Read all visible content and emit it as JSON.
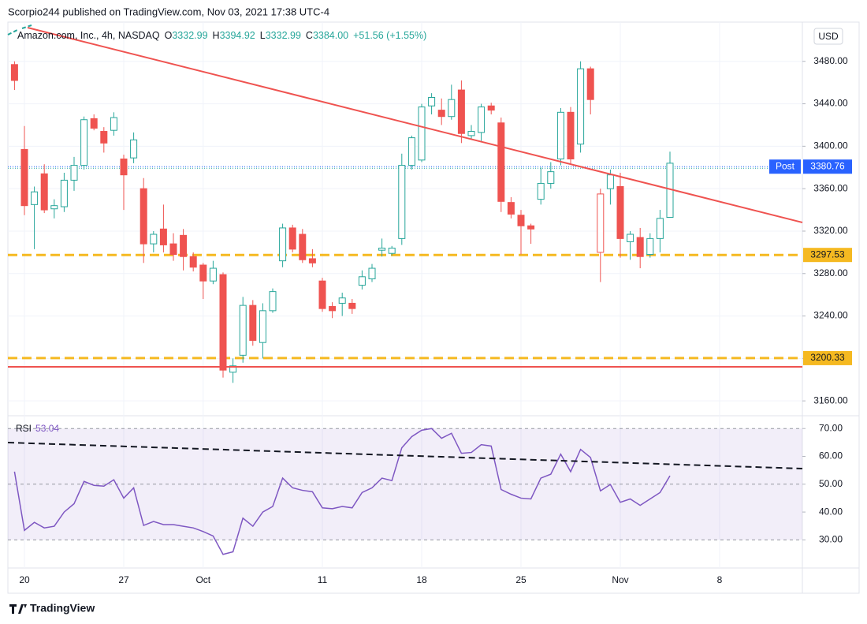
{
  "header": "Scorpio244 published on TradingView.com, Nov 03, 2021 17:38 UTC-4",
  "footer": "TradingView",
  "chart_data": {
    "type": "candlestick",
    "currency": "USD",
    "symbol": "Amazon.com, Inc., 4h, NASDAQ",
    "legend": [
      {
        "key": "O",
        "text": "3332.99"
      },
      {
        "key": "H",
        "text": "3394.92"
      },
      {
        "key": "L",
        "text": "3332.99"
      },
      {
        "key": "C",
        "text": "3384.00"
      }
    ],
    "change": "+51.56 (+1.55%)",
    "up_color": "#26a69a",
    "down_color": "#ef5350",
    "categories": [
      null,
      "20",
      null,
      null,
      null,
      null,
      null,
      null,
      null,
      null,
      null,
      "27",
      null,
      null,
      null,
      null,
      null,
      null,
      null,
      "Oct",
      null,
      null,
      null,
      null,
      null,
      null,
      null,
      null,
      null,
      null,
      null,
      "11",
      null,
      null,
      null,
      null,
      null,
      null,
      null,
      null,
      null,
      "18",
      null,
      null,
      null,
      null,
      null,
      null,
      null,
      null,
      null,
      "25",
      null,
      null,
      null,
      null,
      null,
      null,
      null,
      null,
      null,
      "Nov",
      null,
      null,
      null,
      null,
      null,
      null,
      null,
      null,
      null,
      "8",
      null,
      null,
      null,
      null,
      null,
      null,
      null,
      null
    ],
    "open": [
      3477,
      3397,
      3345,
      3374,
      3341,
      3343,
      3368,
      3382,
      3426,
      3414,
      3415,
      3388,
      3389,
      3360,
      3308,
      3322,
      3308,
      3316,
      3296,
      3288,
      3273,
      3279,
      3187,
      3203,
      3250,
      3215,
      3245,
      3292,
      3323,
      3317,
      3294,
      3273,
      3249,
      3252,
      3252,
      3269,
      3275,
      3302,
      3299,
      3313,
      3382,
      3387,
      3438,
      3434,
      3428,
      3453,
      3410,
      3413,
      3438,
      3422,
      3347,
      3335,
      3325,
      3350,
      3365,
      3388,
      3432,
      3402,
      3473,
      3300,
      3360,
      3362,
      3310,
      3314,
      3298,
      3313,
      3332.99,
      null,
      null,
      null,
      null,
      null,
      null,
      null,
      null,
      null,
      null,
      null,
      null,
      null
    ],
    "high": [
      3480,
      3419,
      3362,
      3383,
      3350,
      3375,
      3390,
      3428,
      3430,
      3418,
      3432,
      3392,
      3413,
      3370,
      3320,
      3345,
      3318,
      3322,
      3300,
      3290,
      3292,
      3281,
      3200,
      3258,
      3255,
      3252,
      3266,
      3327,
      3326,
      3322,
      3303,
      3276,
      3253,
      3262,
      3256,
      3283,
      3289,
      3313,
      3306,
      3393,
      3410,
      3440,
      3450,
      3445,
      3458,
      3462,
      3420,
      3440,
      3441,
      3427,
      3352,
      3340,
      3327,
      3380,
      3385,
      3436,
      3437,
      3480,
      3475,
      3360,
      3378,
      3375,
      3320,
      3323,
      3318,
      3340,
      3394.92,
      null,
      null,
      null,
      null,
      null,
      null,
      null,
      null,
      null,
      null,
      null,
      null,
      null
    ],
    "low": [
      3453,
      3335,
      3303,
      3337,
      3332,
      3338,
      3358,
      3378,
      3415,
      3394,
      3410,
      3340,
      3384,
      3290,
      3300,
      3300,
      3292,
      3283,
      3282,
      3256,
      3270,
      3182,
      3177,
      3196,
      3212,
      3200,
      3243,
      3286,
      3300,
      3290,
      3286,
      3244,
      3238,
      3240,
      3242,
      3265,
      3272,
      3296,
      3297,
      3307,
      3378,
      3385,
      3430,
      3420,
      3425,
      3403,
      3407,
      3405,
      3430,
      3338,
      3332,
      3298,
      3308,
      3345,
      3360,
      3382,
      3383,
      3394,
      3430,
      3272,
      3345,
      3295,
      3293,
      3285,
      3295,
      3300,
      3332.99,
      null,
      null,
      null,
      null,
      null,
      null,
      null,
      null,
      null,
      null,
      null,
      null,
      null
    ],
    "close": [
      3462,
      3344,
      3357,
      3340,
      3344,
      3368,
      3382,
      3425,
      3417,
      3403,
      3427,
      3373,
      3406,
      3308,
      3317,
      3307,
      3298,
      3296,
      3286,
      3273,
      3285,
      3189,
      3193,
      3250,
      3217,
      3245,
      3263,
      3323,
      3303,
      3293,
      3290,
      3247,
      3245,
      3257,
      3247,
      3277,
      3285,
      3304,
      3304,
      3382,
      3408,
      3437,
      3446,
      3428,
      3444,
      3412,
      3414,
      3437,
      3434,
      3348,
      3336,
      3325,
      3322,
      3365,
      3376,
      3432,
      3388,
      3473,
      3444,
      3355,
      3373,
      3313,
      3317,
      3296,
      3313,
      3332,
      3384,
      null,
      null,
      null,
      null,
      null,
      null,
      null,
      null,
      null,
      null,
      null,
      null,
      null
    ],
    "ylim": [
      3146,
      3517
    ],
    "yticks": [
      {
        "value": 3160,
        "label": "3160.00"
      },
      {
        "value": 3200,
        "label": "3200.00"
      },
      {
        "value": 3240,
        "label": "3240.00"
      },
      {
        "value": 3280,
        "label": "3280.00"
      },
      {
        "value": 3320,
        "label": "3320.00"
      },
      {
        "value": 3360,
        "label": "3360.00"
      },
      {
        "value": 3400,
        "label": "3400.00"
      },
      {
        "value": 3440,
        "label": "3440.00"
      },
      {
        "value": 3480,
        "label": "3480.00"
      }
    ],
    "levels": [
      {
        "value": 3297.53,
        "color": "#f5b921"
      },
      {
        "value": 3200.33,
        "color": "#f5b921"
      }
    ],
    "post": {
      "label": "Post",
      "value": 3380.76,
      "color": "#2962ff"
    },
    "grid": true,
    "rsi": {
      "name": "RSI",
      "last": "53.04",
      "color": "#7e57c2",
      "values": [
        54.5,
        33.4,
        36.3,
        34.3,
        34.9,
        40,
        43,
        51,
        49.6,
        49.3,
        51.6,
        45,
        48.7,
        35.2,
        36.6,
        35.5,
        35.5,
        34.9,
        34.3,
        33,
        31.4,
        24.8,
        25.7,
        37.8,
        34.9,
        40,
        42,
        52.2,
        48.7,
        47.8,
        47.3,
        41.5,
        41.2,
        42,
        41.5,
        47,
        48.7,
        52.2,
        51.3,
        63.1,
        67.1,
        69.4,
        70,
        66.5,
        68.3,
        61.1,
        61.4,
        64.2,
        63.7,
        48.1,
        46.4,
        45,
        44.7,
        52.2,
        53.6,
        60.8,
        54.5,
        62.5,
        59.6,
        47.6,
        49.9,
        43.5,
        44.7,
        42.4,
        44.7,
        47,
        53.04,
        null,
        null,
        null,
        null,
        null,
        null,
        null,
        null,
        null,
        null,
        null,
        null,
        null
      ],
      "ylim": [
        19.9,
        74.6
      ],
      "yticks": [
        {
          "value": 30,
          "label": "30.00"
        },
        {
          "value": 40,
          "label": "40.00"
        },
        {
          "value": 50,
          "label": "50.00"
        },
        {
          "value": 60,
          "label": "60.00"
        },
        {
          "value": 70,
          "label": "70.00"
        }
      ],
      "band": [
        30,
        70
      ],
      "hlines": [
        30,
        50,
        70
      ]
    }
  }
}
